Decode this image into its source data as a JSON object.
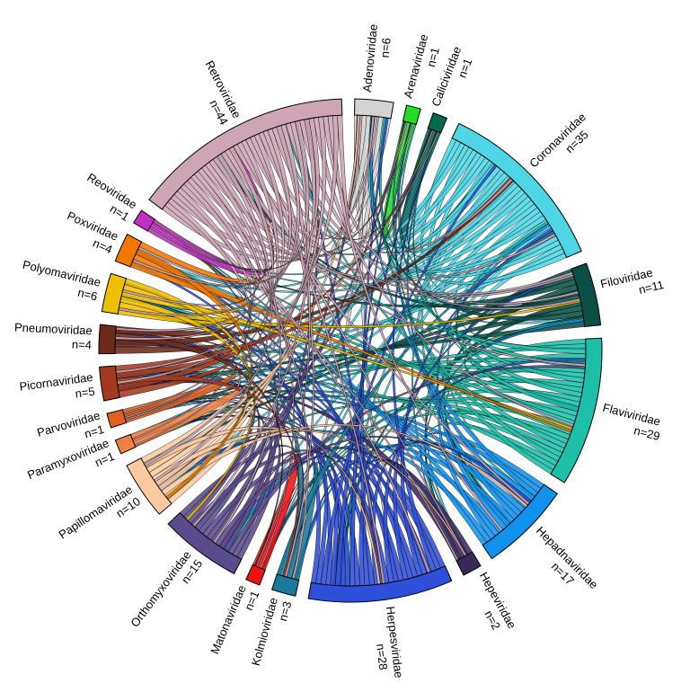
{
  "chart_data": {
    "type": "chord",
    "categories": [
      "Adenoviridae",
      "Arenaviridae",
      "Caliciviridae",
      "Coronaviridae",
      "Filoviridae",
      "Flaviviridae",
      "Hepadnaviridae",
      "Hepeviridae",
      "Herpesviridae",
      "Kolmioviridae",
      "Matonaviridae",
      "Orthomyxoviridae",
      "Papillomaviridae",
      "Paramyxoviridae",
      "Parvoviridae",
      "Picornaviridae",
      "Pneumoviridae",
      "Polyomaviridae",
      "Poxviridae",
      "Reoviridae",
      "Retroviridae"
    ],
    "values": [
      6,
      1,
      1,
      35,
      11,
      29,
      17,
      2,
      28,
      3,
      1,
      15,
      10,
      1,
      1,
      5,
      4,
      6,
      4,
      1,
      44
    ],
    "value_labels": [
      "n=6",
      "n=1",
      "n=1",
      "n=35",
      "n=11",
      "n=29",
      "n=17",
      "n=2",
      "n=28",
      "n=3",
      "n=1",
      "n=15",
      "n=10",
      "n=1",
      "n=1",
      "n=5",
      "n=4",
      "n=6",
      "n=4",
      "n=1",
      "n=44"
    ],
    "colors": [
      "#d3d3d3",
      "#22dd22",
      "#006a50",
      "#4fd6e6",
      "#0b4f47",
      "#1dbfa9",
      "#1192ee",
      "#3a2a5a",
      "#2e4fd9",
      "#1b7a9a",
      "#ee1111",
      "#5a4b8c",
      "#fbcaa0",
      "#f08040",
      "#e06020",
      "#a33a20",
      "#6b2a1a",
      "#f0c000",
      "#f07800",
      "#c030c0",
      "#cda5b5"
    ]
  }
}
